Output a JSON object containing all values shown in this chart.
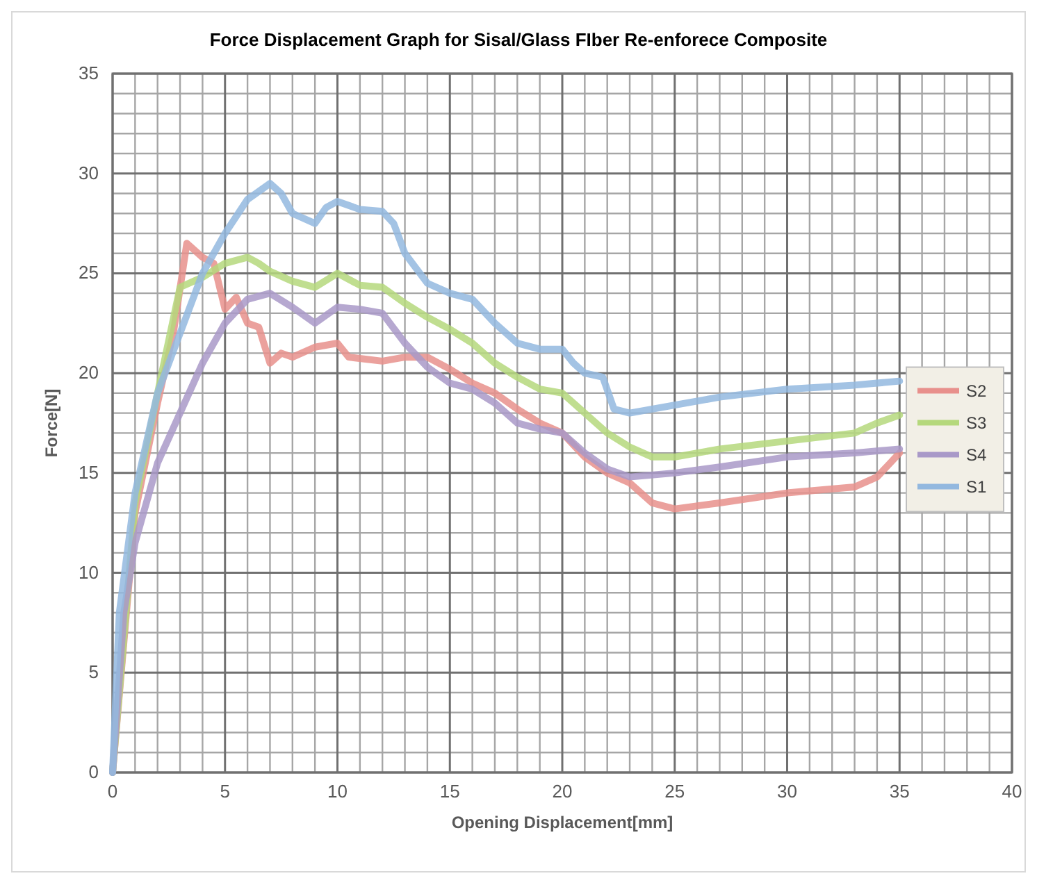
{
  "chart_data": {
    "type": "line",
    "title": "Force Displacement Graph for Sisal/Glass FIber Re-enforece Composite",
    "xlabel": "Opening Displacement[mm]",
    "ylabel": "Force[N]",
    "xlim": [
      0,
      40
    ],
    "xticks": [
      0,
      5,
      10,
      15,
      20,
      25,
      30,
      35,
      40
    ],
    "ylim": [
      0,
      35
    ],
    "yticks": [
      0,
      5,
      10,
      15,
      20,
      25,
      30,
      35
    ],
    "grid": true,
    "legend": "right",
    "marker": "none",
    "line_style": "solid",
    "series": [
      {
        "name": "S2",
        "color": "#e8908c",
        "x": [
          0,
          1,
          2,
          2.7,
          3.3,
          4,
          4.5,
          5,
          5.5,
          6,
          6.5,
          7,
          7.5,
          8,
          9,
          10,
          10.5,
          12,
          13,
          14,
          15,
          16,
          17,
          18,
          19,
          20,
          21,
          22,
          23,
          24,
          25,
          27,
          30,
          33,
          34,
          35
        ],
        "values": [
          0,
          13,
          18.5,
          22,
          26.5,
          25.8,
          25.5,
          23.2,
          23.8,
          22.5,
          22.3,
          20.5,
          21,
          20.8,
          21.3,
          21.5,
          20.8,
          20.6,
          20.8,
          20.8,
          20.2,
          19.5,
          19,
          18.2,
          17.5,
          17,
          15.8,
          15,
          14.5,
          13.5,
          13.2,
          13.5,
          14,
          14.3,
          14.8,
          16
        ]
      },
      {
        "name": "S3",
        "color": "#b5d87c",
        "x": [
          0,
          1,
          2,
          3,
          4,
          5,
          6,
          6.5,
          7,
          8,
          9,
          10,
          11,
          12,
          13,
          14,
          15,
          16,
          17,
          18,
          19,
          20,
          21,
          22,
          23,
          24,
          25,
          27,
          30,
          33,
          34,
          35
        ],
        "values": [
          0,
          13.5,
          19,
          24.3,
          24.8,
          25.5,
          25.8,
          25.5,
          25.1,
          24.6,
          24.3,
          25,
          24.4,
          24.3,
          23.5,
          22.8,
          22.2,
          21.5,
          20.5,
          19.8,
          19.2,
          19,
          18,
          17,
          16.3,
          15.8,
          15.8,
          16.2,
          16.6,
          17,
          17.5,
          17.9
        ]
      },
      {
        "name": "S4",
        "color": "#a999c8",
        "x": [
          0,
          0.5,
          1,
          2,
          3,
          4,
          5,
          6,
          7,
          8,
          9,
          10,
          11,
          12,
          13,
          14,
          15,
          16,
          17,
          18,
          19,
          20,
          21,
          22,
          23,
          25,
          27,
          30,
          33,
          35
        ],
        "values": [
          0,
          8,
          11.5,
          15.5,
          18,
          20.5,
          22.5,
          23.7,
          24,
          23.3,
          22.5,
          23.3,
          23.2,
          23,
          21.5,
          20.3,
          19.5,
          19.2,
          18.5,
          17.5,
          17.2,
          17,
          16,
          15.2,
          14.8,
          15,
          15.3,
          15.8,
          16,
          16.2
        ]
      },
      {
        "name": "S1",
        "color": "#93b8df",
        "x": [
          0,
          0.3,
          1,
          2,
          3,
          4,
          5,
          6,
          7,
          7.5,
          8,
          9,
          9.5,
          10,
          11,
          12,
          12.5,
          13,
          14,
          15,
          16,
          17,
          18,
          19,
          20,
          20.5,
          21,
          21.8,
          22.3,
          23,
          24,
          25,
          27,
          30,
          33,
          35
        ],
        "values": [
          0,
          8,
          14,
          19,
          22,
          25,
          27,
          28.7,
          29.5,
          29,
          28,
          27.5,
          28.3,
          28.6,
          28.2,
          28.1,
          27.5,
          26,
          24.5,
          24,
          23.7,
          22.5,
          21.5,
          21.2,
          21.2,
          20.5,
          20,
          19.8,
          18.2,
          18,
          18.2,
          18.4,
          18.8,
          19.2,
          19.4,
          19.6
        ]
      }
    ]
  }
}
